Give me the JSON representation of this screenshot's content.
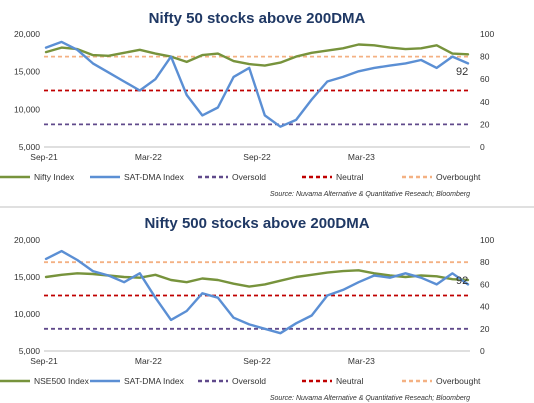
{
  "colors": {
    "index": "#77933c",
    "sat": "#5b8fd4",
    "oversold": "#604a8b",
    "neutral": "#c00000",
    "overbought": "#f4b183",
    "title": "#1f3864",
    "separator": "#c0c0c0"
  },
  "chart_data": [
    {
      "type": "line",
      "title": "Nifty 50 stocks above 200DMA",
      "source": "Source: Nuvama Alternative & Quantitative Reseach; Bloomberg",
      "x_ticks": [
        "Sep-21",
        "Mar-22",
        "Sep-22",
        "Mar-23"
      ],
      "y_left": {
        "range": [
          5000,
          20000
        ],
        "ticks": [
          "20,000",
          "15,000",
          "10,000",
          "5,000"
        ]
      },
      "y_right": {
        "range": [
          0,
          100
        ],
        "ticks": [
          "100",
          "80",
          "60",
          "40",
          "20",
          "0"
        ]
      },
      "annotation": "92",
      "thresholds": {
        "oversold": 20,
        "neutral": 50,
        "overbought": 80
      },
      "legend": [
        "Nifty Index",
        "SAT-DMA Index",
        "Oversold",
        "Neutral",
        "Overbought"
      ],
      "series": [
        {
          "name": "Nifty Index",
          "axis": "left",
          "x": [
            0,
            1,
            2,
            3,
            4,
            5,
            6,
            7,
            8,
            9,
            10,
            11,
            12,
            13,
            14,
            15,
            16,
            17,
            18,
            19,
            20,
            21,
            22,
            23,
            24,
            25,
            26,
            27
          ],
          "values": [
            17600,
            18200,
            18000,
            17200,
            17100,
            17500,
            17900,
            17400,
            17000,
            16300,
            17200,
            17400,
            16400,
            16000,
            15800,
            16200,
            17000,
            17500,
            17800,
            18100,
            18600,
            18500,
            18200,
            18000,
            18100,
            18500,
            17400,
            17300
          ]
        },
        {
          "name": "SAT-DMA Index",
          "axis": "right",
          "x": [
            0,
            1,
            2,
            3,
            4,
            5,
            6,
            7,
            8,
            9,
            10,
            11,
            12,
            13,
            14,
            15,
            16,
            17,
            18,
            19,
            20,
            21,
            22,
            23,
            24,
            25,
            26,
            27
          ],
          "values": [
            88,
            93,
            86,
            74,
            66,
            58,
            50,
            60,
            80,
            46,
            28,
            35,
            62,
            70,
            28,
            18,
            24,
            42,
            58,
            62,
            67,
            70,
            72,
            74,
            77,
            70,
            80,
            74
          ]
        }
      ]
    },
    {
      "type": "line",
      "title": "Nifty 500 stocks above 200DMA",
      "source": "Source: Nuvama Alternative & Quantitative Reseach; Bloomberg",
      "x_ticks": [
        "Sep-21",
        "Mar-22",
        "Sep-22",
        "Mar-23"
      ],
      "y_left": {
        "range": [
          5000,
          20000
        ],
        "ticks": [
          "20,000",
          "15,000",
          "10,000",
          "5,000"
        ]
      },
      "y_right": {
        "range": [
          0,
          100
        ],
        "ticks": [
          "100",
          "80",
          "60",
          "40",
          "20",
          "0"
        ]
      },
      "annotation": "92",
      "thresholds": {
        "oversold": 20,
        "neutral": 50,
        "overbought": 80
      },
      "legend": [
        "NSE500 Index",
        "SAT-DMA Index",
        "Oversold",
        "Neutral",
        "Overbought"
      ],
      "series": [
        {
          "name": "NSE500 Index",
          "axis": "left",
          "x": [
            0,
            1,
            2,
            3,
            4,
            5,
            6,
            7,
            8,
            9,
            10,
            11,
            12,
            13,
            14,
            15,
            16,
            17,
            18,
            19,
            20,
            21,
            22,
            23,
            24,
            25,
            26,
            27
          ],
          "values": [
            15000,
            15300,
            15500,
            15400,
            15200,
            15000,
            14900,
            15300,
            14600,
            14300,
            14800,
            14600,
            14100,
            13700,
            14000,
            14500,
            15000,
            15300,
            15600,
            15800,
            15900,
            15500,
            15200,
            15000,
            15200,
            15100,
            14700,
            14600
          ]
        },
        {
          "name": "SAT-DMA Index",
          "axis": "right",
          "x": [
            0,
            1,
            2,
            3,
            4,
            5,
            6,
            7,
            8,
            9,
            10,
            11,
            12,
            13,
            14,
            15,
            16,
            17,
            18,
            19,
            20,
            21,
            22,
            23,
            24,
            25,
            26,
            27
          ],
          "values": [
            83,
            90,
            82,
            72,
            68,
            62,
            70,
            48,
            28,
            36,
            52,
            48,
            30,
            24,
            20,
            16,
            25,
            32,
            50,
            55,
            62,
            68,
            66,
            70,
            66,
            60,
            70,
            60
          ]
        }
      ]
    }
  ]
}
